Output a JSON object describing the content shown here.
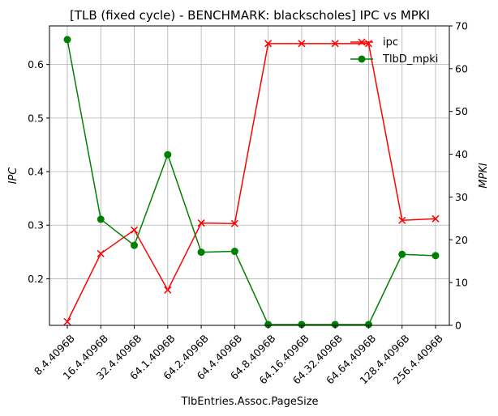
{
  "chart_data": {
    "type": "line",
    "title": "[TLB (fixed cycle) - BENCHMARK: blackscholes]  IPC vs MPKI",
    "xlabel": "TlbEntries.Assoc.PageSize",
    "ylabel_left": "IPC",
    "ylabel_right": "MPKI",
    "categories": [
      "8.4.4096B",
      "16.4.4096B",
      "32.4.4096B",
      "64.1.4096B",
      "64.2.4096B",
      "64.4.4096B",
      "64.8.4096B",
      "64.16.4096B",
      "64.32.4096B",
      "64.64.4096B",
      "128.4.4096B",
      "256.4.4096B"
    ],
    "ylim_left": [
      0.113,
      0.672
    ],
    "ylim_right": [
      0,
      70
    ],
    "yticks_left": [
      0.2,
      0.3,
      0.4,
      0.5,
      0.6
    ],
    "yticks_right": [
      0,
      10,
      20,
      30,
      40,
      50,
      60,
      70
    ],
    "grid": true,
    "legend_position": "top-right",
    "series": [
      {
        "name": "ipc",
        "axis": "left",
        "color": "#ff0000",
        "marker": "x",
        "values": [
          0.12,
          0.247,
          0.291,
          0.179,
          0.304,
          0.303,
          0.639,
          0.639,
          0.639,
          0.639,
          0.309,
          0.312
        ]
      },
      {
        "name": "TlbD_mpki",
        "axis": "right",
        "color": "#008000",
        "marker": "o",
        "values": [
          66.8,
          24.8,
          18.7,
          39.9,
          17.1,
          17.3,
          0.2,
          0.2,
          0.2,
          0.2,
          16.6,
          16.3
        ]
      }
    ]
  }
}
